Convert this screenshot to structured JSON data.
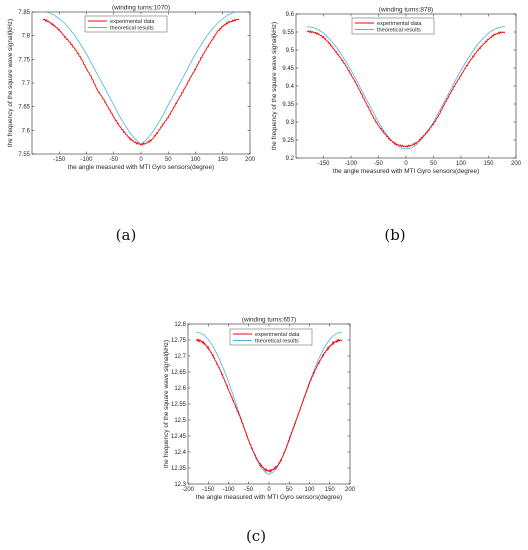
{
  "chart_data": [
    {
      "type": "line",
      "title": "(winding turns:1070)",
      "xlabel": "the angle measured with MTI Gyro sensors(degree)",
      "ylabel": "the frequency of the square wave signal(kHz)",
      "xlim": [
        -200,
        200
      ],
      "ylim": [
        7.55,
        7.85
      ],
      "xticks": [
        -150,
        -100,
        -50,
        0,
        50,
        100,
        150,
        200
      ],
      "yticks": [
        7.55,
        7.6,
        7.65,
        7.7,
        7.75,
        7.8,
        7.85
      ],
      "legend_position": "top-center",
      "caption": "(a)",
      "series": [
        {
          "name": "experimental data",
          "color": "#ff0000",
          "x": [
            -180,
            -170,
            -160,
            -150,
            -140,
            -130,
            -120,
            -110,
            -100,
            -90,
            -80,
            -70,
            -60,
            -50,
            -40,
            -30,
            -20,
            -10,
            0,
            10,
            20,
            30,
            40,
            50,
            60,
            70,
            80,
            90,
            100,
            110,
            120,
            130,
            140,
            150,
            160,
            170,
            180
          ],
          "y": [
            7.835,
            7.83,
            7.822,
            7.812,
            7.798,
            7.785,
            7.77,
            7.752,
            7.73,
            7.71,
            7.685,
            7.668,
            7.648,
            7.628,
            7.61,
            7.595,
            7.582,
            7.574,
            7.57,
            7.573,
            7.58,
            7.595,
            7.612,
            7.628,
            7.648,
            7.668,
            7.688,
            7.71,
            7.73,
            7.752,
            7.772,
            7.79,
            7.808,
            7.82,
            7.828,
            7.832,
            7.835
          ]
        },
        {
          "name": "theoretical results",
          "color": "#4db3e6",
          "x": [
            -180,
            -170,
            -160,
            -150,
            -140,
            -130,
            -120,
            -110,
            -100,
            -90,
            -80,
            -70,
            -60,
            -50,
            -40,
            -30,
            -20,
            -10,
            0,
            10,
            20,
            30,
            40,
            50,
            60,
            70,
            80,
            90,
            100,
            110,
            120,
            130,
            140,
            150,
            160,
            170,
            180
          ],
          "y": [
            7.85,
            7.849,
            7.844,
            7.836,
            7.826,
            7.813,
            7.798,
            7.78,
            7.761,
            7.74,
            7.718,
            7.697,
            7.675,
            7.654,
            7.631,
            7.612,
            7.594,
            7.581,
            7.57,
            7.581,
            7.594,
            7.612,
            7.631,
            7.654,
            7.675,
            7.697,
            7.718,
            7.74,
            7.761,
            7.78,
            7.798,
            7.813,
            7.826,
            7.836,
            7.844,
            7.849,
            7.85
          ]
        }
      ]
    },
    {
      "type": "line",
      "title": "(winding turns:878)",
      "xlabel": "the angle measured with MTI Gyro sensors(degree)",
      "ylabel": "the frequency of the square wave signal(kHz)",
      "xlim": [
        -200,
        200
      ],
      "ylim": [
        9.2,
        9.6
      ],
      "xticks": [
        -150,
        -100,
        -50,
        0,
        50,
        100,
        150,
        200
      ],
      "yticks": [
        9.2,
        9.25,
        9.3,
        9.35,
        9.4,
        9.45,
        9.5,
        9.55,
        9.6
      ],
      "legend_position": "top-center",
      "caption": "(b)",
      "series": [
        {
          "name": "experimental data",
          "color": "#ff0000",
          "x": [
            -180,
            -170,
            -160,
            -150,
            -140,
            -130,
            -120,
            -110,
            -100,
            -90,
            -80,
            -70,
            -60,
            -50,
            -40,
            -30,
            -20,
            -10,
            0,
            10,
            20,
            30,
            40,
            50,
            60,
            70,
            80,
            90,
            100,
            110,
            120,
            130,
            140,
            150,
            160,
            170,
            180
          ],
          "y": [
            9.552,
            9.55,
            9.545,
            9.535,
            9.52,
            9.5,
            9.48,
            9.458,
            9.432,
            9.405,
            9.375,
            9.345,
            9.315,
            9.29,
            9.27,
            9.252,
            9.24,
            9.234,
            9.232,
            9.235,
            9.243,
            9.258,
            9.275,
            9.295,
            9.32,
            9.35,
            9.378,
            9.405,
            9.43,
            9.455,
            9.478,
            9.498,
            9.515,
            9.53,
            9.542,
            9.548,
            9.55
          ]
        },
        {
          "name": "theoretical results",
          "color": "#4db3e6",
          "x": [
            -180,
            -170,
            -160,
            -150,
            -140,
            -130,
            -120,
            -110,
            -100,
            -90,
            -80,
            -70,
            -60,
            -50,
            -40,
            -30,
            -20,
            -10,
            0,
            10,
            20,
            30,
            40,
            50,
            60,
            70,
            80,
            90,
            100,
            110,
            120,
            130,
            140,
            150,
            160,
            170,
            180
          ],
          "y": [
            9.565,
            9.563,
            9.557,
            9.547,
            9.532,
            9.515,
            9.493,
            9.47,
            9.444,
            9.416,
            9.386,
            9.357,
            9.329,
            9.3,
            9.275,
            9.255,
            9.238,
            9.228,
            9.225,
            9.228,
            9.238,
            9.255,
            9.275,
            9.3,
            9.329,
            9.357,
            9.386,
            9.416,
            9.444,
            9.47,
            9.493,
            9.515,
            9.532,
            9.547,
            9.557,
            9.563,
            9.565
          ]
        }
      ]
    },
    {
      "type": "line",
      "title": "(winding turns:657)",
      "xlabel": "the angle measured with MTI Gyro sensors(degree)",
      "ylabel": "the frequency of the square wave signal(kHz)",
      "xlim": [
        -200,
        200
      ],
      "ylim": [
        12.3,
        12.8
      ],
      "xticks": [
        -200,
        -150,
        -100,
        -50,
        0,
        50,
        100,
        150,
        200
      ],
      "yticks": [
        12.3,
        12.35,
        12.4,
        12.45,
        12.5,
        12.55,
        12.6,
        12.65,
        12.7,
        12.75,
        12.8
      ],
      "legend_position": "top-center",
      "caption": "(c)",
      "series": [
        {
          "name": "experimental data",
          "color": "#ff0000",
          "x": [
            -180,
            -170,
            -160,
            -150,
            -140,
            -130,
            -120,
            -110,
            -100,
            -90,
            -80,
            -70,
            -60,
            -50,
            -40,
            -30,
            -20,
            -10,
            0,
            10,
            20,
            30,
            40,
            50,
            60,
            70,
            80,
            90,
            100,
            110,
            120,
            130,
            140,
            150,
            160,
            170,
            180
          ],
          "y": [
            12.75,
            12.748,
            12.74,
            12.725,
            12.705,
            12.68,
            12.655,
            12.625,
            12.595,
            12.565,
            12.535,
            12.505,
            12.47,
            12.435,
            12.405,
            12.378,
            12.358,
            12.345,
            12.34,
            12.345,
            12.355,
            12.375,
            12.405,
            12.44,
            12.475,
            12.51,
            12.545,
            12.58,
            12.615,
            12.645,
            12.672,
            12.695,
            12.715,
            12.73,
            12.742,
            12.748,
            12.75
          ]
        },
        {
          "name": "theoretical results",
          "color": "#4db3e6",
          "x": [
            -180,
            -170,
            -160,
            -150,
            -140,
            -130,
            -120,
            -110,
            -100,
            -90,
            -80,
            -70,
            -60,
            -50,
            -40,
            -30,
            -20,
            -10,
            0,
            10,
            20,
            30,
            40,
            50,
            60,
            70,
            80,
            90,
            100,
            110,
            120,
            130,
            140,
            150,
            160,
            170,
            180
          ],
          "y": [
            12.775,
            12.772,
            12.765,
            12.752,
            12.734,
            12.71,
            12.683,
            12.652,
            12.619,
            12.583,
            12.546,
            12.508,
            12.472,
            12.436,
            12.404,
            12.375,
            12.352,
            12.337,
            12.33,
            12.337,
            12.352,
            12.375,
            12.404,
            12.436,
            12.472,
            12.508,
            12.546,
            12.583,
            12.619,
            12.652,
            12.683,
            12.71,
            12.734,
            12.752,
            12.765,
            12.772,
            12.775
          ]
        }
      ]
    }
  ]
}
